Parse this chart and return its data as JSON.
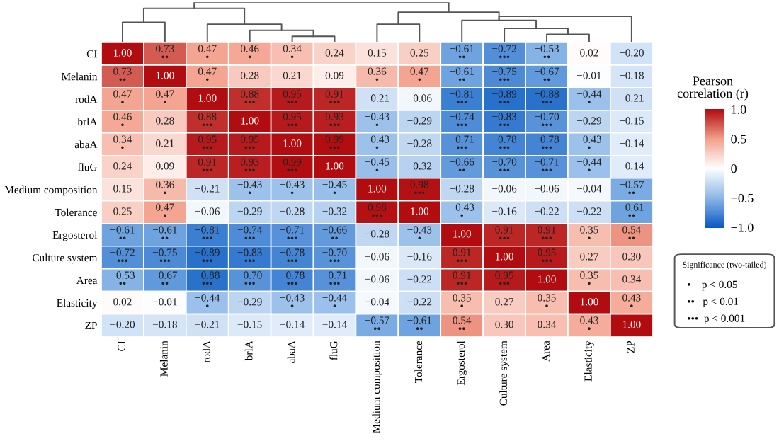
{
  "chart_data": {
    "type": "heatmap",
    "categories": [
      "CI",
      "Melanin",
      "rodA",
      "brlA",
      "abaA",
      "fluG",
      "Medium composition",
      "Tolerance",
      "Ergosterol",
      "Culture system",
      "Area",
      "Elasticity",
      "ZP"
    ],
    "y_categories": [
      "CI",
      "Melanin",
      "rodA",
      "brlA",
      "abaA",
      "fluG",
      "Medium composition",
      "Tolerance",
      "Ergosterol",
      "Culture system",
      "Area",
      "Elasticity",
      "ZP"
    ],
    "cells": [
      [
        1.0,
        0.73,
        0.47,
        0.46,
        0.34,
        0.24,
        0.15,
        0.25,
        -0.61,
        -0.72,
        -0.53,
        0.02,
        -0.2
      ],
      [
        0.73,
        1.0,
        0.47,
        0.28,
        0.21,
        0.09,
        0.36,
        0.47,
        -0.61,
        -0.75,
        -0.67,
        -0.01,
        -0.18
      ],
      [
        0.47,
        0.47,
        1.0,
        0.88,
        0.95,
        0.91,
        -0.21,
        -0.06,
        -0.81,
        -0.89,
        -0.88,
        -0.44,
        -0.21
      ],
      [
        0.46,
        0.28,
        0.88,
        1.0,
        0.95,
        0.93,
        -0.43,
        -0.29,
        -0.74,
        -0.83,
        -0.7,
        -0.29,
        -0.15
      ],
      [
        0.34,
        0.21,
        0.95,
        0.95,
        1.0,
        0.99,
        -0.43,
        -0.28,
        -0.71,
        -0.78,
        -0.78,
        -0.43,
        -0.14
      ],
      [
        0.24,
        0.09,
        0.91,
        0.93,
        0.99,
        1.0,
        -0.45,
        -0.32,
        -0.66,
        -0.7,
        -0.71,
        -0.44,
        -0.14
      ],
      [
        0.15,
        0.36,
        -0.21,
        -0.43,
        -0.43,
        -0.45,
        1.0,
        0.98,
        -0.28,
        -0.06,
        -0.06,
        -0.04,
        -0.57
      ],
      [
        0.25,
        0.47,
        -0.06,
        -0.29,
        -0.28,
        -0.32,
        0.98,
        1.0,
        -0.43,
        -0.16,
        -0.22,
        -0.22,
        -0.61
      ],
      [
        -0.61,
        -0.61,
        -0.81,
        -0.74,
        -0.71,
        -0.66,
        -0.28,
        -0.43,
        1.0,
        0.91,
        0.91,
        0.35,
        0.54
      ],
      [
        -0.72,
        -0.75,
        -0.89,
        -0.83,
        -0.78,
        -0.7,
        -0.06,
        -0.16,
        0.91,
        1.0,
        0.95,
        0.27,
        0.3
      ],
      [
        -0.53,
        -0.67,
        -0.88,
        -0.7,
        -0.78,
        -0.71,
        -0.06,
        -0.22,
        0.91,
        0.95,
        1.0,
        0.35,
        0.34
      ],
      [
        0.02,
        -0.01,
        -0.44,
        -0.29,
        -0.43,
        -0.44,
        -0.04,
        -0.22,
        0.35,
        0.27,
        0.35,
        1.0,
        0.43
      ],
      [
        -0.2,
        -0.18,
        -0.21,
        -0.15,
        -0.14,
        -0.14,
        -0.57,
        -0.61,
        0.54,
        0.3,
        0.34,
        0.43,
        1.0
      ]
    ],
    "cell_labels": [
      [
        "1.00",
        "0.73\n••",
        "0.47\n•",
        "0.46\n•",
        "0.34\n•",
        "0.24",
        "0.15",
        "0.25",
        "−0.61\n••",
        "−0.72\n•••",
        "−0.53\n••",
        "0.02",
        "−0.20"
      ],
      [
        "0.73\n••",
        "1.00",
        "0.47\n•",
        "0.28",
        "0.21",
        "0.09",
        "0.36\n•",
        "0.47\n•",
        "−0.61\n••",
        "−0.75\n•••",
        "−0.67\n••",
        "−0.01",
        "−0.18"
      ],
      [
        "0.47\n•",
        "0.47\n•",
        "1.00",
        "0.88\n•••",
        "0.95\n•••",
        "0.91\n•••",
        "−0.21",
        "−0.06",
        "−0.81\n•••",
        "−0.89\n•••",
        "−0.88\n•••",
        "−0.44\n•",
        "−0.21"
      ],
      [
        "0.46\n•",
        "0.28",
        "0.88\n•••",
        "1.00",
        "0.95\n•••",
        "0.93\n•••",
        "−0.43\n•",
        "−0.29",
        "−0.74\n•••",
        "−0.83\n•••",
        "−0.70\n•••",
        "−0.29",
        "−0.15"
      ],
      [
        "0.34\n•",
        "0.21",
        "0.95\n•••",
        "0.95\n•••",
        "1.00",
        "0.99\n•••",
        "−0.43\n•",
        "−0.28",
        "−0.71\n•••",
        "−0.78\n•••",
        "−0.78\n•••",
        "−0.43\n•",
        "−0.14"
      ],
      [
        "0.24",
        "0.09",
        "0.91\n•••",
        "0.93\n•••",
        "0.99\n•••",
        "1.00",
        "−0.45\n•",
        "−0.32",
        "−0.66\n••",
        "−0.70\n•••",
        "−0.71\n•••",
        "−0.44\n•",
        "−0.14"
      ],
      [
        "0.15",
        "0.36\n•",
        "−0.21",
        "−0.43\n•",
        "−0.43\n•",
        "−0.45\n•",
        "1.00",
        "0.98\n•••",
        "−0.28",
        "−0.06",
        "−0.06",
        "−0.04",
        "−0.57\n••"
      ],
      [
        "0.25",
        "0.47\n•",
        "−0.06",
        "−0.29",
        "−0.28",
        "−0.32",
        "0.98\n•••",
        "1.00",
        "−0.43\n•",
        "−0.16",
        "−0.22",
        "−0.22",
        "−0.61\n••"
      ],
      [
        "−0.61\n••",
        "−0.61\n••",
        "−0.81\n•••",
        "−0.74\n•••",
        "−0.71\n•••",
        "−0.66\n••",
        "−0.28",
        "−0.43\n•",
        "1.00",
        "0.91\n•••",
        "0.91\n•••",
        "0.35\n•",
        "0.54\n••"
      ],
      [
        "−0.72\n•••",
        "−0.75\n•••",
        "−0.89\n•••",
        "−0.83\n•••",
        "−0.78\n•••",
        "−0.70\n•••",
        "−0.06",
        "−0.16",
        "0.91\n•••",
        "1.00",
        "0.95\n•••",
        "0.27",
        "0.30"
      ],
      [
        "−0.53\n••",
        "−0.67\n••",
        "−0.88\n•••",
        "−0.70\n•••",
        "−0.78\n•••",
        "−0.71\n•••",
        "−0.06",
        "−0.22",
        "0.91\n•••",
        "0.95\n•••",
        "1.00",
        "0.35\n•",
        "0.34"
      ],
      [
        "0.02",
        "−0.01",
        "−0.44\n•",
        "−0.29",
        "−0.43\n•",
        "−0.44\n•",
        "−0.04",
        "−0.22",
        "0.35\n•",
        "0.27",
        "0.35\n•",
        "1.00",
        "0.43\n•"
      ],
      [
        "−0.20",
        "−0.18",
        "−0.21",
        "−0.15",
        "−0.14",
        "−0.14",
        "−0.57\n••",
        "−0.61\n••",
        "0.54\n••",
        "0.30",
        "0.34",
        "0.43\n•",
        "1.00"
      ]
    ],
    "clabel": "Pearson\ncorrelation (r)",
    "clim": [
      -1.0,
      1.0
    ],
    "cticks": [
      {
        "value": 1.0,
        "label": "1.0"
      },
      {
        "value": 0.5,
        "label": "0.5"
      },
      0,
      {
        "value": -0.5,
        "label": "−0.5"
      },
      {
        "value": -1.0,
        "label": "−1.0"
      }
    ],
    "annotations": [
      "Significance (two-tailed)",
      "•    p < 0.05",
      "••   p < 0.01",
      "•••  p < 0.001"
    ]
  }
}
